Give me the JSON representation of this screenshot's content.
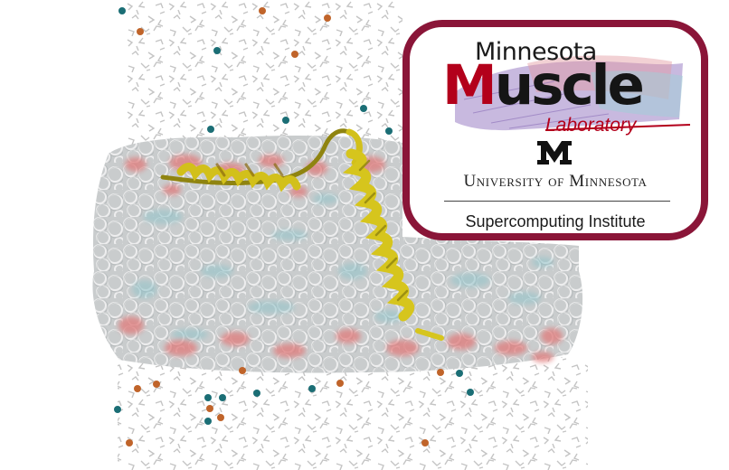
{
  "logo": {
    "line1": "Minnesota",
    "line2_first_letter": "M",
    "line2_rest": "uscle",
    "line3": "Laboratory"
  },
  "university": "University of Minnesota",
  "institute": "Supercomputing Institute",
  "colors": {
    "maroon": "#8a1538",
    "muscle_red": "#b3001b",
    "helix_yellow": "#d4c21c",
    "membrane_gray": "#c8cbcc",
    "lipid_teal": "#6fb3bd",
    "headgroup_pink": "#e07a7a",
    "ion_teal": "#1b6e75",
    "ion_orange": "#c0642a"
  }
}
